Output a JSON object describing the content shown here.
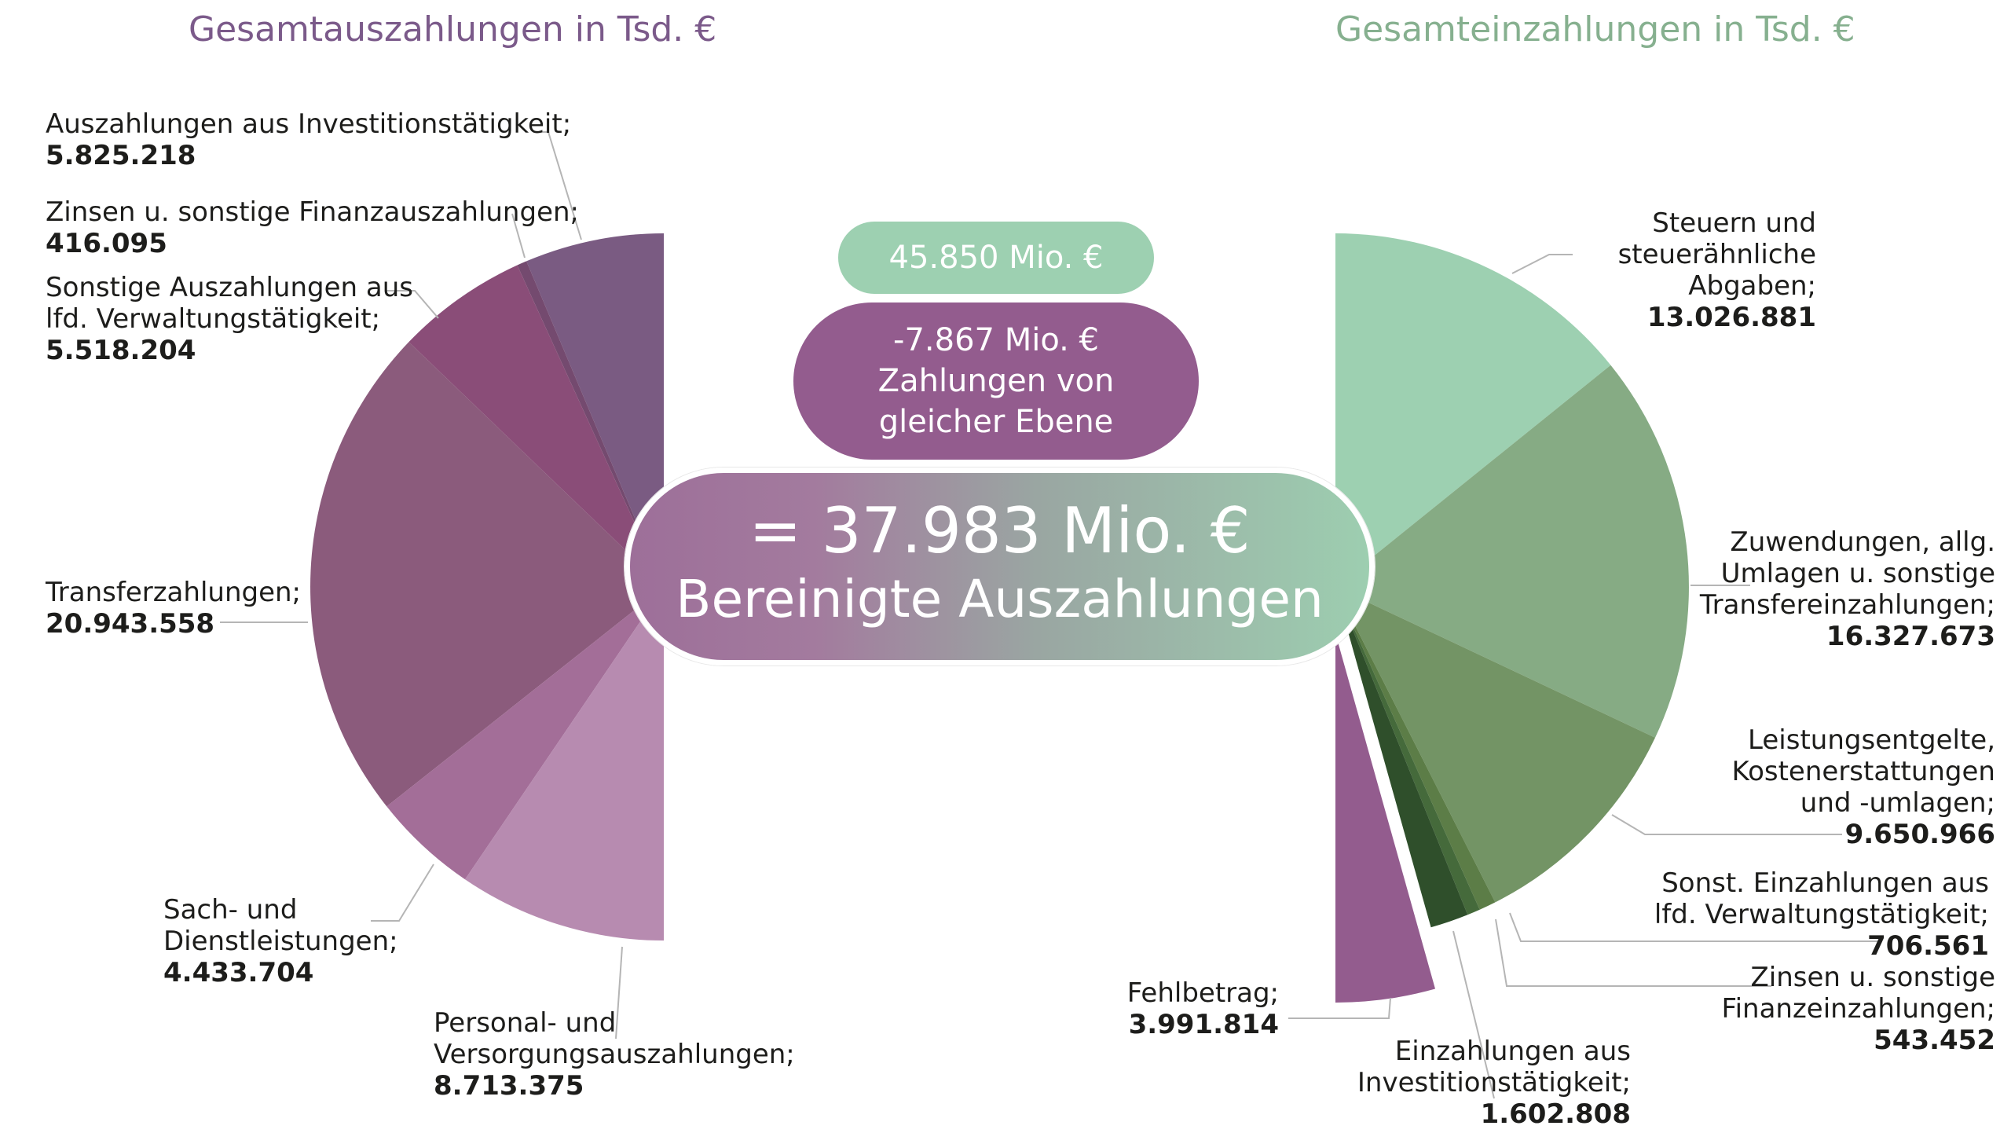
{
  "titles": {
    "left": "Gesamtauszahlungen in Tsd. €",
    "right": "Gesamteinzahlungen in Tsd. €"
  },
  "pills": {
    "gross": "45.850 Mio. €",
    "same_level_value": "-7.867 Mio. €",
    "same_level_text": "Zahlungen von\ngleicher Ebene",
    "net_value": "= 37.983 Mio. €",
    "net_text": "Bereinigte Auszahlungen"
  },
  "chart_data": [
    {
      "type": "pie",
      "title": "Gesamtauszahlungen in Tsd. €",
      "slices": [
        {
          "label": "Auszahlungen aus Investitionstätigkeit;",
          "value": 5825218,
          "value_text": "5.825.218",
          "color": "#7a5b82"
        },
        {
          "label": "Zinsen u. sonstige Finanzauszahlungen;",
          "value": 416095,
          "value_text": "416.095",
          "color": "#744a6f"
        },
        {
          "label": "Sonstige Auszahlungen aus\nlfd. Verwaltungstätigkeit;",
          "value": 5518204,
          "value_text": "5.518.204",
          "color": "#8a4d78"
        },
        {
          "label": "Transferzahlungen;",
          "value": 20943558,
          "value_text": "20.943.558",
          "color": "#8b5b7c"
        },
        {
          "label": "Sach- und\nDienstleistungen;",
          "value": 4433704,
          "value_text": "4.433.704",
          "color": "#a36e98"
        },
        {
          "label": "Personal- und\nVersorgungsauszahlungen;",
          "value": 8713375,
          "value_text": "8.713.375",
          "color": "#b78bb0"
        }
      ]
    },
    {
      "type": "pie",
      "title": "Gesamteinzahlungen in Tsd. €",
      "slices": [
        {
          "label": "Steuern und\nsteuerähnliche\nAbgaben;",
          "value": 13026881,
          "value_text": "13.026.881",
          "color": "#9dd0b1"
        },
        {
          "label": "Zuwendungen, allg.\nUmlagen u. sonstige\nTransfereinzahlungen;",
          "value": 16327673,
          "value_text": "16.327.673",
          "color": "#86ab84"
        },
        {
          "label": "Leistungsentgelte,\nKostenerstattungen\nund -umlagen;",
          "value": 9650966,
          "value_text": "9.650.966",
          "color": "#739465"
        },
        {
          "label": "Sonst. Einzahlungen aus\nlfd. Verwaltungstätigkeit;",
          "value": 706561,
          "value_text": "706.561",
          "color": "#5c7d47"
        },
        {
          "label": "Zinsen u. sonstige\nFinanzeinzahlungen;",
          "value": 543452,
          "value_text": "543.452",
          "color": "#456a3b"
        },
        {
          "label": "Einzahlungen aus\nInvestitionstätigkeit;",
          "value": 1602808,
          "value_text": "1.602.808",
          "color": "#2f4f2b"
        },
        {
          "label": "Fehlbetrag;",
          "value": 3991814,
          "value_text": "3.991.814",
          "color": "#935c8e"
        }
      ]
    }
  ],
  "colors": {
    "leader_line": "#b5b5b5",
    "title_left": "#7b5a8a",
    "title_right": "#86b08f"
  }
}
